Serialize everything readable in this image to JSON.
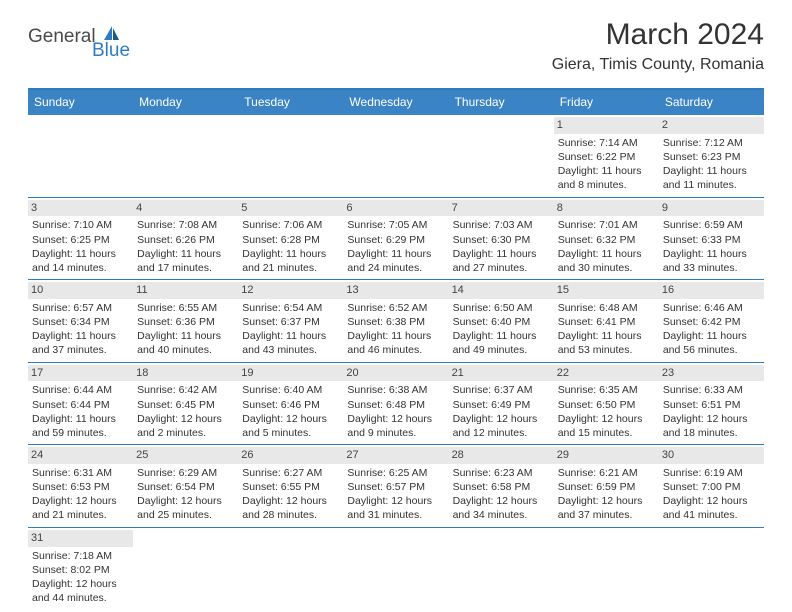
{
  "brand": {
    "name_part1": "General",
    "name_part2": "Blue"
  },
  "title": "March 2024",
  "location": "Giera, Timis County, Romania",
  "colors": {
    "header_bg": "#3a84c5",
    "border": "#2f7bbf",
    "daynum_bg": "#e8e8e8",
    "text": "#333333",
    "brand_blue": "#2f7bbf"
  },
  "day_headers": [
    "Sunday",
    "Monday",
    "Tuesday",
    "Wednesday",
    "Thursday",
    "Friday",
    "Saturday"
  ],
  "weeks": [
    [
      {
        "day": "",
        "sunrise": "",
        "sunset": "",
        "daylight": ""
      },
      {
        "day": "",
        "sunrise": "",
        "sunset": "",
        "daylight": ""
      },
      {
        "day": "",
        "sunrise": "",
        "sunset": "",
        "daylight": ""
      },
      {
        "day": "",
        "sunrise": "",
        "sunset": "",
        "daylight": ""
      },
      {
        "day": "",
        "sunrise": "",
        "sunset": "",
        "daylight": ""
      },
      {
        "day": "1",
        "sunrise": "Sunrise: 7:14 AM",
        "sunset": "Sunset: 6:22 PM",
        "daylight": "Daylight: 11 hours and 8 minutes."
      },
      {
        "day": "2",
        "sunrise": "Sunrise: 7:12 AM",
        "sunset": "Sunset: 6:23 PM",
        "daylight": "Daylight: 11 hours and 11 minutes."
      }
    ],
    [
      {
        "day": "3",
        "sunrise": "Sunrise: 7:10 AM",
        "sunset": "Sunset: 6:25 PM",
        "daylight": "Daylight: 11 hours and 14 minutes."
      },
      {
        "day": "4",
        "sunrise": "Sunrise: 7:08 AM",
        "sunset": "Sunset: 6:26 PM",
        "daylight": "Daylight: 11 hours and 17 minutes."
      },
      {
        "day": "5",
        "sunrise": "Sunrise: 7:06 AM",
        "sunset": "Sunset: 6:28 PM",
        "daylight": "Daylight: 11 hours and 21 minutes."
      },
      {
        "day": "6",
        "sunrise": "Sunrise: 7:05 AM",
        "sunset": "Sunset: 6:29 PM",
        "daylight": "Daylight: 11 hours and 24 minutes."
      },
      {
        "day": "7",
        "sunrise": "Sunrise: 7:03 AM",
        "sunset": "Sunset: 6:30 PM",
        "daylight": "Daylight: 11 hours and 27 minutes."
      },
      {
        "day": "8",
        "sunrise": "Sunrise: 7:01 AM",
        "sunset": "Sunset: 6:32 PM",
        "daylight": "Daylight: 11 hours and 30 minutes."
      },
      {
        "day": "9",
        "sunrise": "Sunrise: 6:59 AM",
        "sunset": "Sunset: 6:33 PM",
        "daylight": "Daylight: 11 hours and 33 minutes."
      }
    ],
    [
      {
        "day": "10",
        "sunrise": "Sunrise: 6:57 AM",
        "sunset": "Sunset: 6:34 PM",
        "daylight": "Daylight: 11 hours and 37 minutes."
      },
      {
        "day": "11",
        "sunrise": "Sunrise: 6:55 AM",
        "sunset": "Sunset: 6:36 PM",
        "daylight": "Daylight: 11 hours and 40 minutes."
      },
      {
        "day": "12",
        "sunrise": "Sunrise: 6:54 AM",
        "sunset": "Sunset: 6:37 PM",
        "daylight": "Daylight: 11 hours and 43 minutes."
      },
      {
        "day": "13",
        "sunrise": "Sunrise: 6:52 AM",
        "sunset": "Sunset: 6:38 PM",
        "daylight": "Daylight: 11 hours and 46 minutes."
      },
      {
        "day": "14",
        "sunrise": "Sunrise: 6:50 AM",
        "sunset": "Sunset: 6:40 PM",
        "daylight": "Daylight: 11 hours and 49 minutes."
      },
      {
        "day": "15",
        "sunrise": "Sunrise: 6:48 AM",
        "sunset": "Sunset: 6:41 PM",
        "daylight": "Daylight: 11 hours and 53 minutes."
      },
      {
        "day": "16",
        "sunrise": "Sunrise: 6:46 AM",
        "sunset": "Sunset: 6:42 PM",
        "daylight": "Daylight: 11 hours and 56 minutes."
      }
    ],
    [
      {
        "day": "17",
        "sunrise": "Sunrise: 6:44 AM",
        "sunset": "Sunset: 6:44 PM",
        "daylight": "Daylight: 11 hours and 59 minutes."
      },
      {
        "day": "18",
        "sunrise": "Sunrise: 6:42 AM",
        "sunset": "Sunset: 6:45 PM",
        "daylight": "Daylight: 12 hours and 2 minutes."
      },
      {
        "day": "19",
        "sunrise": "Sunrise: 6:40 AM",
        "sunset": "Sunset: 6:46 PM",
        "daylight": "Daylight: 12 hours and 5 minutes."
      },
      {
        "day": "20",
        "sunrise": "Sunrise: 6:38 AM",
        "sunset": "Sunset: 6:48 PM",
        "daylight": "Daylight: 12 hours and 9 minutes."
      },
      {
        "day": "21",
        "sunrise": "Sunrise: 6:37 AM",
        "sunset": "Sunset: 6:49 PM",
        "daylight": "Daylight: 12 hours and 12 minutes."
      },
      {
        "day": "22",
        "sunrise": "Sunrise: 6:35 AM",
        "sunset": "Sunset: 6:50 PM",
        "daylight": "Daylight: 12 hours and 15 minutes."
      },
      {
        "day": "23",
        "sunrise": "Sunrise: 6:33 AM",
        "sunset": "Sunset: 6:51 PM",
        "daylight": "Daylight: 12 hours and 18 minutes."
      }
    ],
    [
      {
        "day": "24",
        "sunrise": "Sunrise: 6:31 AM",
        "sunset": "Sunset: 6:53 PM",
        "daylight": "Daylight: 12 hours and 21 minutes."
      },
      {
        "day": "25",
        "sunrise": "Sunrise: 6:29 AM",
        "sunset": "Sunset: 6:54 PM",
        "daylight": "Daylight: 12 hours and 25 minutes."
      },
      {
        "day": "26",
        "sunrise": "Sunrise: 6:27 AM",
        "sunset": "Sunset: 6:55 PM",
        "daylight": "Daylight: 12 hours and 28 minutes."
      },
      {
        "day": "27",
        "sunrise": "Sunrise: 6:25 AM",
        "sunset": "Sunset: 6:57 PM",
        "daylight": "Daylight: 12 hours and 31 minutes."
      },
      {
        "day": "28",
        "sunrise": "Sunrise: 6:23 AM",
        "sunset": "Sunset: 6:58 PM",
        "daylight": "Daylight: 12 hours and 34 minutes."
      },
      {
        "day": "29",
        "sunrise": "Sunrise: 6:21 AM",
        "sunset": "Sunset: 6:59 PM",
        "daylight": "Daylight: 12 hours and 37 minutes."
      },
      {
        "day": "30",
        "sunrise": "Sunrise: 6:19 AM",
        "sunset": "Sunset: 7:00 PM",
        "daylight": "Daylight: 12 hours and 41 minutes."
      }
    ],
    [
      {
        "day": "31",
        "sunrise": "Sunrise: 7:18 AM",
        "sunset": "Sunset: 8:02 PM",
        "daylight": "Daylight: 12 hours and 44 minutes."
      },
      {
        "day": "",
        "sunrise": "",
        "sunset": "",
        "daylight": ""
      },
      {
        "day": "",
        "sunrise": "",
        "sunset": "",
        "daylight": ""
      },
      {
        "day": "",
        "sunrise": "",
        "sunset": "",
        "daylight": ""
      },
      {
        "day": "",
        "sunrise": "",
        "sunset": "",
        "daylight": ""
      },
      {
        "day": "",
        "sunrise": "",
        "sunset": "",
        "daylight": ""
      },
      {
        "day": "",
        "sunrise": "",
        "sunset": "",
        "daylight": ""
      }
    ]
  ]
}
